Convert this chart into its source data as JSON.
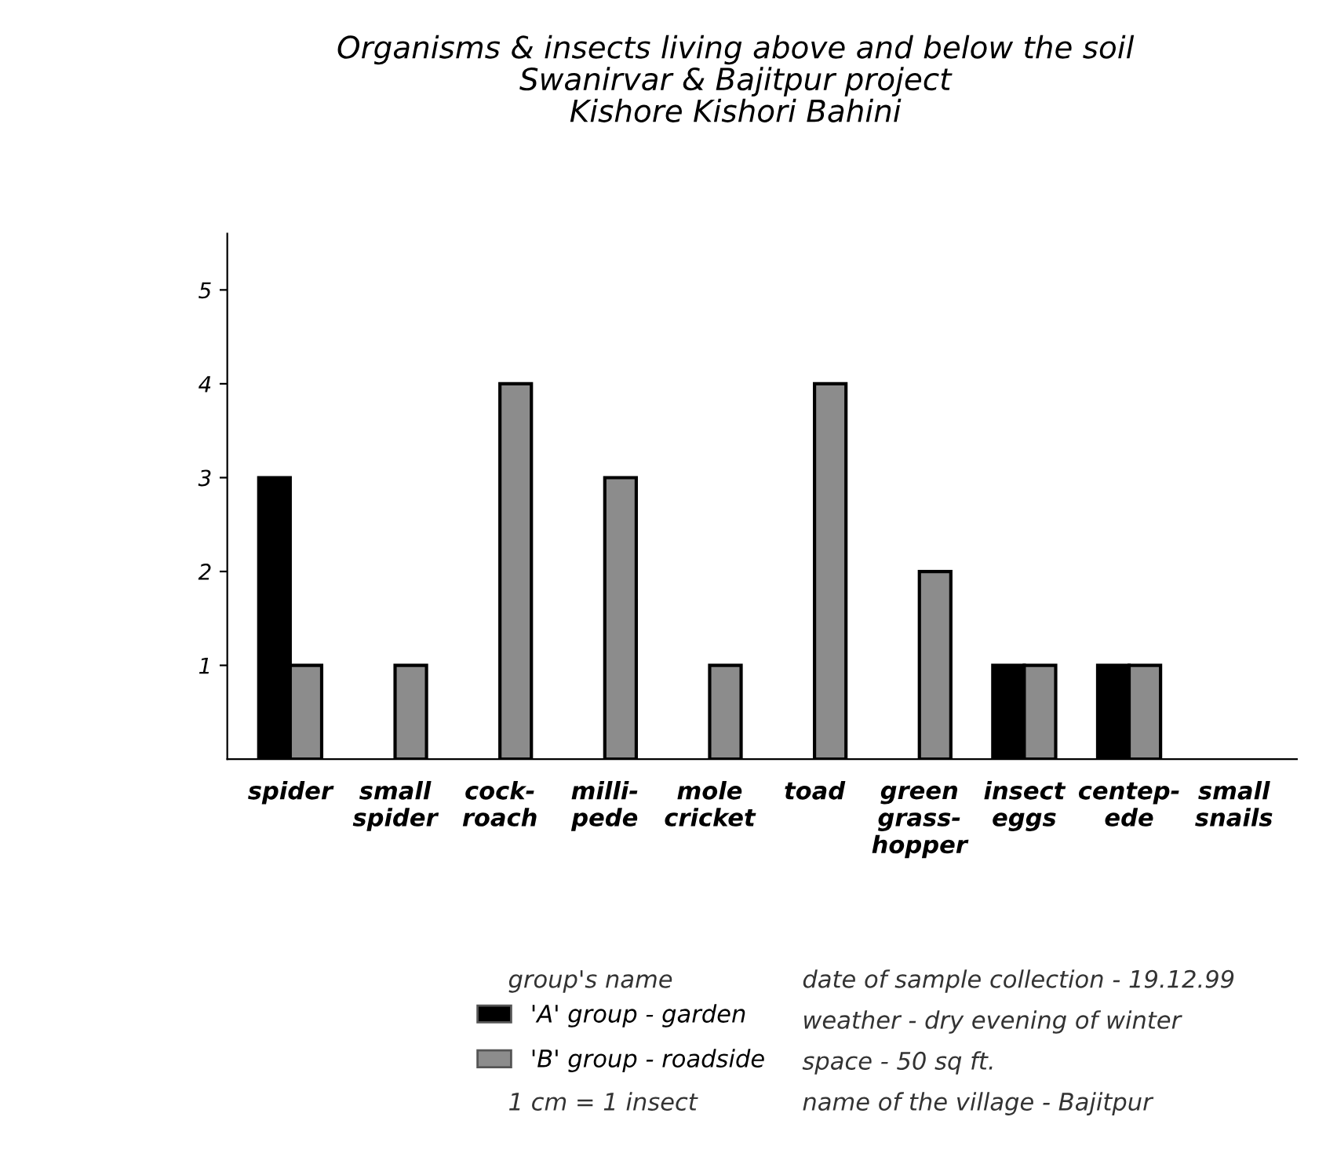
{
  "chart_data": {
    "type": "bar",
    "title": "Organisms & insects living above and below the soil\nSwanirvar & Bajitpur project\nKishore Kishori Bahini",
    "categories": [
      "spider",
      "small\nspider",
      "cock-\nroach",
      "milli-\npede",
      "mole\ncricket",
      "toad",
      "green\ngrass-\nhopper",
      "insect\neggs",
      "centep-\nede",
      "small\nsnails"
    ],
    "series": [
      {
        "name": "'A' group - garden",
        "color": "#000000",
        "values": [
          3,
          null,
          null,
          null,
          null,
          null,
          null,
          1,
          1,
          null
        ]
      },
      {
        "name": "'B' group - roadside",
        "color": "#8c8c8c",
        "values": [
          1,
          1,
          4,
          3,
          1,
          4,
          2,
          1,
          1,
          null
        ]
      }
    ],
    "ylim": [
      0,
      5.6
    ],
    "yticks": [
      1,
      2,
      3,
      4,
      5
    ],
    "grid": false,
    "legend": "bottom",
    "annotations": [
      "group's name",
      "date of sample collection - 19.12.99",
      "weather - dry evening of winter",
      "space - 50 sq ft.",
      "1 cm = 1 insect",
      "name of the village - Bajitpur"
    ]
  }
}
